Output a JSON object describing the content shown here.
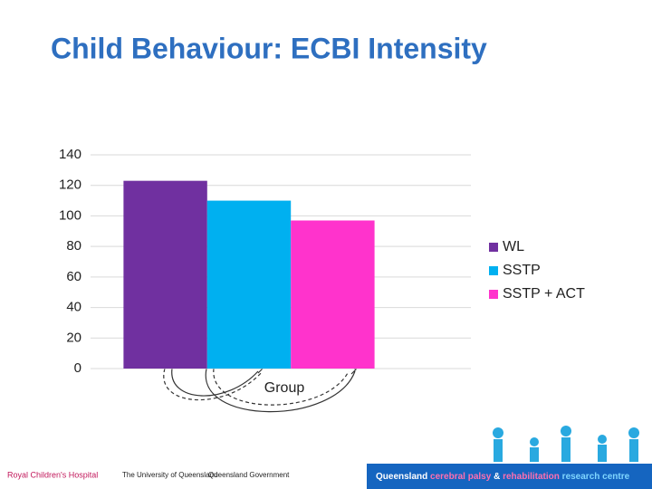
{
  "chart_data": {
    "type": "bar",
    "title": "Child Behaviour: ECBI Intensity",
    "categories": [
      "Group"
    ],
    "series": [
      {
        "name": "WL",
        "color": "#7030a0",
        "values": [
          123
        ]
      },
      {
        "name": "SSTP",
        "color": "#00b0f0",
        "values": [
          110
        ]
      },
      {
        "name": "SSTP + ACT",
        "color": "#ff33cc",
        "values": [
          97
        ]
      }
    ],
    "ylim": [
      0,
      140
    ],
    "yticks": [
      0,
      20,
      40,
      60,
      80,
      100,
      120,
      140
    ],
    "grid": true,
    "legend": "right"
  },
  "footer": {
    "logos": [
      "Royal Children's Hospital",
      "The University of Queensland",
      "Queensland Government"
    ],
    "centre": [
      "Queensland",
      "cerebral palsy",
      "&",
      "rehabilitation",
      "research centre"
    ]
  }
}
